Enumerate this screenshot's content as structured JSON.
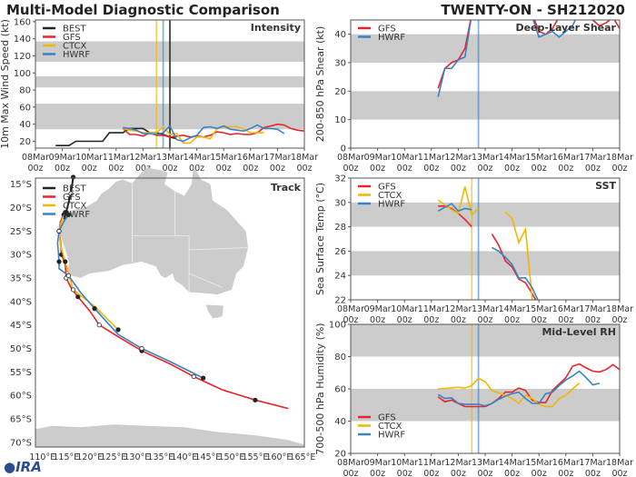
{
  "title": "Multi-Model Diagnostic Comparison",
  "storm": "TWENTY-ON - SH212020",
  "logo": "CIRA",
  "colors": {
    "BEST": "#222222",
    "GFS": "#e8232a",
    "CTCX": "#f2b705",
    "HWRF": "#3a82c4",
    "band": "#cccccc",
    "land": "#cccccc"
  },
  "chart_data": [
    {
      "type": "line",
      "title": "Intensity",
      "ylabel": "10m Max Wind Speed (kt)",
      "ylim": [
        12,
        162
      ],
      "yticks": [
        20,
        40,
        60,
        80,
        100,
        120,
        140,
        160
      ],
      "xlim": [
        "2020-03-08T00",
        "2020-03-18T00"
      ],
      "xticks": [
        "08Mar 00z",
        "09Mar 00z",
        "10Mar 00z",
        "11Mar 00z",
        "12Mar 00z",
        "13Mar 00z",
        "14Mar 00z",
        "15Mar 00z",
        "16Mar 00z",
        "17Mar 00z",
        "18Mar 00z"
      ],
      "bands": [
        [
          34,
          64
        ],
        [
          83,
          96
        ],
        [
          113,
          137
        ]
      ],
      "legend": [
        "BEST",
        "GFS",
        "CTCX",
        "HWRF"
      ],
      "legend_position": "top-left",
      "vlines": [
        {
          "model": "CTCX",
          "time": "2020-03-12T12"
        },
        {
          "model": "HWRF",
          "time": "2020-03-12T18"
        },
        {
          "model": "BEST",
          "time": "2020-03-13T00"
        }
      ],
      "series": [
        {
          "name": "BEST",
          "start": "2020-03-08T18",
          "values": [
            15,
            15,
            15,
            20,
            20,
            20,
            20,
            20,
            30,
            30,
            30,
            35,
            35,
            35,
            30,
            30,
            28,
            25,
            23
          ]
        },
        {
          "name": "GFS",
          "start": "2020-03-11T06",
          "values": [
            35,
            28,
            28,
            26,
            30,
            27,
            27,
            25,
            26,
            27,
            25,
            26,
            25,
            27,
            31,
            30,
            28,
            29,
            28,
            28,
            30,
            36,
            38,
            40,
            39,
            35,
            33,
            32
          ]
        },
        {
          "name": "CTCX",
          "start": "2020-03-11T06",
          "values": [
            35,
            33,
            32,
            30,
            30,
            30,
            37,
            28,
            29,
            18,
            18,
            25,
            25,
            23,
            35,
            37,
            37,
            37,
            34,
            30,
            30,
            30
          ]
        },
        {
          "name": "HWRF",
          "start": "2020-03-11T06",
          "values": [
            36,
            35,
            33,
            29,
            29,
            28,
            30,
            38,
            22,
            20,
            24,
            27,
            36,
            37,
            35,
            38,
            34,
            33,
            32,
            35,
            39,
            35,
            35,
            34,
            29
          ]
        }
      ]
    },
    {
      "type": "line",
      "title": "Deep-Layer Shear",
      "ylabel": "200-850 hPa Shear (kt)",
      "ylim": [
        0,
        45
      ],
      "yticks": [
        0,
        10,
        20,
        30,
        40
      ],
      "xlim": [
        "2020-03-08T00",
        "2020-03-18T00"
      ],
      "xticks": [
        "08Mar 00z",
        "09Mar 00z",
        "10Mar 00z",
        "11Mar 00z",
        "12Mar 00z",
        "13Mar 00z",
        "14Mar 00z",
        "15Mar 00z",
        "16Mar 00z",
        "17Mar 00z",
        "18Mar 00z"
      ],
      "bands": [
        [
          10,
          20
        ],
        [
          30,
          40
        ]
      ],
      "legend": [
        "GFS",
        "HWRF"
      ],
      "legend_position": "top-left",
      "vlines": [
        {
          "model": "HWRF",
          "time": "2020-03-12T18"
        }
      ],
      "series": [
        {
          "name": "GFS",
          "start": "2020-03-11T06",
          "values": [
            21,
            28,
            30,
            31,
            35,
            47,
            null,
            null,
            null,
            null,
            null,
            null,
            null,
            null,
            47,
            41,
            40,
            42,
            46,
            50,
            null,
            null,
            null,
            45,
            43,
            44,
            46,
            42
          ]
        },
        {
          "name": "HWRF",
          "start": "2020-03-11T06",
          "values": [
            18,
            28,
            28,
            31,
            32,
            47,
            null,
            null,
            null,
            null,
            null,
            null,
            null,
            null,
            46,
            39,
            40,
            41,
            39,
            41,
            43,
            48
          ]
        }
      ]
    },
    {
      "type": "line",
      "title": "SST",
      "ylabel": "Sea Surface Temp (°C)",
      "ylim": [
        22,
        32
      ],
      "yticks": [
        22,
        24,
        26,
        28,
        30,
        32
      ],
      "xlim": [
        "2020-03-08T00",
        "2020-03-18T00"
      ],
      "xticks": [
        "08Mar 00z",
        "09Mar 00z",
        "10Mar 00z",
        "11Mar 00z",
        "12Mar 00z",
        "13Mar 00z",
        "14Mar 00z",
        "15Mar 00z",
        "16Mar 00z",
        "17Mar 00z",
        "18Mar 00z"
      ],
      "bands": [
        [
          24,
          26
        ],
        [
          28,
          30
        ]
      ],
      "legend": [
        "GFS",
        "CTCX",
        "HWRF"
      ],
      "legend_position": "top-left",
      "vlines": [
        {
          "model": "CTCX",
          "time": "2020-03-12T12"
        },
        {
          "model": "HWRF",
          "time": "2020-03-12T18"
        }
      ],
      "series": [
        {
          "name": "GFS",
          "start": "2020-03-11T06",
          "values": [
            29.7,
            29.7,
            29.5,
            29.1,
            28.6,
            28.0,
            null,
            null,
            27.4,
            26.5,
            25.2,
            24.7,
            23.7,
            23.4,
            22.5,
            21.5
          ]
        },
        {
          "name": "CTCX",
          "start": "2020-03-11T06",
          "values": [
            30.2,
            29.8,
            29.4,
            29.1,
            31.3,
            29.0,
            29.5,
            null,
            null,
            null,
            29.2,
            28.7,
            26.7,
            27.8,
            22.0,
            21.0
          ]
        },
        {
          "name": "HWRF",
          "start": "2020-03-11T06",
          "values": [
            29.3,
            29.6,
            29.9,
            29.3,
            29.5,
            29.4,
            null,
            null,
            26.3,
            26.0,
            25.5,
            24.9,
            23.8,
            23.8,
            23.0,
            21.8
          ]
        }
      ]
    },
    {
      "type": "line",
      "title": "Mid-Level RH",
      "ylabel": "700-500 hPa Humidity (%)",
      "ylim": [
        20,
        100
      ],
      "yticks": [
        20,
        40,
        60,
        80,
        100
      ],
      "xlim": [
        "2020-03-08T00",
        "2020-03-18T00"
      ],
      "xticks": [
        "08Mar 00z",
        "09Mar 00z",
        "10Mar 00z",
        "11Mar 00z",
        "12Mar 00z",
        "13Mar 00z",
        "14Mar 00z",
        "15Mar 00z",
        "16Mar 00z",
        "17Mar 00z",
        "18Mar 00z"
      ],
      "bands": [
        [
          40,
          60
        ],
        [
          80,
          100
        ]
      ],
      "legend": [
        "GFS",
        "CTCX",
        "HWRF"
      ],
      "legend_position": "bottom-left",
      "vlines": [
        {
          "model": "CTCX",
          "time": "2020-03-12T12"
        },
        {
          "model": "HWRF",
          "time": "2020-03-12T18"
        }
      ],
      "series": [
        {
          "name": "GFS",
          "start": "2020-03-11T06",
          "values": [
            55,
            52,
            53,
            51,
            49,
            49,
            49,
            49,
            51,
            54,
            58,
            58,
            60.5,
            59,
            53,
            51.5,
            51.5,
            59,
            63,
            67,
            74,
            75.5,
            73,
            71,
            70.5,
            72,
            75,
            72
          ]
        },
        {
          "name": "CTCX",
          "start": "2020-03-11T06",
          "values": [
            60,
            60.3,
            60.6,
            61,
            60.5,
            62,
            66.5,
            64.5,
            59,
            57.5,
            56,
            54,
            51,
            56,
            54,
            50.5,
            49,
            49,
            54,
            56,
            60,
            63.5
          ]
        },
        {
          "name": "HWRF",
          "start": "2020-03-11T06",
          "values": [
            56.5,
            54,
            54.5,
            51,
            50.5,
            50.5,
            50.5,
            49.5,
            51,
            53.5,
            55.5,
            57,
            58,
            54,
            51,
            51,
            57,
            58,
            62,
            65.5,
            68,
            71,
            67,
            62.5,
            63.5
          ]
        }
      ]
    },
    {
      "type": "map",
      "title": "Track",
      "lon_range": [
        108.5,
        165.4
      ],
      "lat_range": [
        -13.7,
        -71
      ],
      "lon_ticks": [
        "110°E",
        "115°E",
        "120°E",
        "125°E",
        "130°E",
        "135°E",
        "140°E",
        "145°E",
        "150°E",
        "155°E",
        "160°E",
        "165°E"
      ],
      "lat_ticks": [
        "15°S",
        "20°S",
        "25°S",
        "30°S",
        "35°S",
        "40°S",
        "45°S",
        "50°S",
        "55°S",
        "60°S",
        "65°S",
        "70°S"
      ],
      "legend": [
        "BEST",
        "GFS",
        "CTCX",
        "HWRF"
      ],
      "legend_position": "top-left",
      "tracks": [
        {
          "name": "BEST",
          "points": [
            [
              116.5,
              -13.5
            ],
            [
              116.2,
              -15.5
            ],
            [
              116,
              -17
            ],
            [
              115.5,
              -19
            ],
            [
              115,
              -21
            ],
            [
              114.6,
              -22.5
            ]
          ]
        },
        {
          "name": "GFS",
          "points": [
            [
              114.5,
              -21.5
            ],
            [
              113.8,
              -23
            ],
            [
              113.5,
              -25
            ],
            [
              113.8,
              -27
            ],
            [
              114,
              -30
            ],
            [
              114.8,
              -32
            ],
            [
              115,
              -35
            ],
            [
              116,
              -37
            ],
            [
              117.5,
              -39
            ],
            [
              120,
              -42
            ],
            [
              122,
              -45
            ],
            [
              126,
              -47.5
            ],
            [
              131,
              -50.5
            ],
            [
              137,
              -53.3
            ],
            [
              142,
              -56
            ],
            [
              148,
              -58.8
            ],
            [
              155,
              -61
            ],
            [
              162,
              -62.8
            ]
          ]
        },
        {
          "name": "CTCX",
          "points": [
            [
              114.8,
              -21
            ],
            [
              114,
              -23
            ],
            [
              113.5,
              -25
            ],
            [
              113.8,
              -28
            ],
            [
              114.8,
              -31.5
            ],
            [
              115.5,
              -34
            ],
            [
              116.5,
              -37.5
            ],
            [
              121,
              -41
            ],
            [
              126,
              -46
            ]
          ]
        },
        {
          "name": "HWRF",
          "points": [
            [
              115.5,
              -21.5
            ],
            [
              114.5,
              -23
            ],
            [
              113.5,
              -25
            ],
            [
              113.2,
              -27.5
            ],
            [
              113.5,
              -31.5
            ],
            [
              113.5,
              -33
            ],
            [
              115.5,
              -34.5
            ],
            [
              118,
              -38
            ],
            [
              121,
              -41.5
            ],
            [
              126,
              -47
            ],
            [
              131,
              -50
            ],
            [
              137,
              -52.8
            ],
            [
              144,
              -56.3
            ]
          ]
        }
      ]
    }
  ]
}
